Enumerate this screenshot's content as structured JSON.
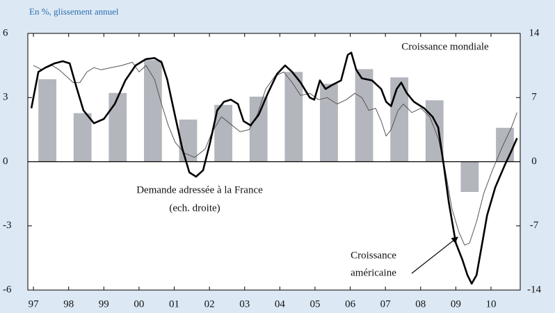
{
  "chart_data": {
    "type": "combo",
    "subtitle": "En %, glissement annuel",
    "xlim": [
      1996.84,
      2010.83
    ],
    "xticks": [
      {
        "value": 1997,
        "label": "97"
      },
      {
        "value": 1998,
        "label": "98"
      },
      {
        "value": 1999,
        "label": "99"
      },
      {
        "value": 2000,
        "label": "00"
      },
      {
        "value": 2001,
        "label": "01"
      },
      {
        "value": 2002,
        "label": "02"
      },
      {
        "value": 2003,
        "label": "03"
      },
      {
        "value": 2004,
        "label": "04"
      },
      {
        "value": 2005,
        "label": "05"
      },
      {
        "value": 2006,
        "label": "06"
      },
      {
        "value": 2007,
        "label": "07"
      },
      {
        "value": 2008,
        "label": "08"
      },
      {
        "value": 2009,
        "label": "09"
      },
      {
        "value": 2010,
        "label": "10"
      }
    ],
    "ylim": [
      -6,
      6
    ],
    "yticks": [
      -6,
      -3,
      0,
      3,
      6
    ],
    "y2lim": [
      -14,
      14
    ],
    "y2ticks": [
      -14,
      -7,
      0,
      7,
      14
    ],
    "annotations": [
      "Croissance mondiale",
      "Demande adressée à la France",
      "(ech. droite)",
      "Croissance",
      "américaine"
    ],
    "series": [
      {
        "type": "bar",
        "axis": "y2",
        "color": "#b4b6bd",
        "x": [
          1997,
          1998,
          1999,
          2000,
          2001,
          2002,
          2003,
          2004,
          2005,
          2006,
          2007,
          2008,
          2009,
          2010
        ],
        "values": [
          9.0,
          5.3,
          7.5,
          11.1,
          4.6,
          6.2,
          7.1,
          9.8,
          8.5,
          10.1,
          9.2,
          6.7,
          -3.3,
          3.7
        ]
      },
      {
        "type": "line",
        "color": "#555555",
        "width": 1,
        "x": [
          1997.0,
          1997.24,
          1997.53,
          1997.73,
          1997.93,
          1998.13,
          1998.32,
          1998.52,
          1998.72,
          1998.92,
          1999.21,
          1999.51,
          1999.81,
          2000.0,
          2000.2,
          2000.44,
          2000.64,
          2000.83,
          2001.03,
          2001.29,
          2001.58,
          2001.88,
          2002.08,
          2002.34,
          2002.57,
          2002.87,
          2003.13,
          2003.36,
          2003.6,
          2003.86,
          2004.11,
          2004.35,
          2004.59,
          2004.85,
          2005.1,
          2005.34,
          2005.63,
          2005.89,
          2006.13,
          2006.33,
          2006.53,
          2006.72,
          2006.88,
          2007.02,
          2007.16,
          2007.36,
          2007.51,
          2007.75,
          2008.01,
          2008.26,
          2008.5,
          2008.7,
          2008.89,
          2009.09,
          2009.25,
          2009.39,
          2009.59,
          2009.79,
          2010.04,
          2010.32,
          2010.58,
          2010.74
        ],
        "values": [
          4.5,
          4.3,
          4.5,
          4.3,
          4.0,
          3.7,
          3.7,
          4.2,
          4.4,
          4.3,
          4.4,
          4.5,
          4.65,
          4.2,
          4.5,
          3.85,
          2.7,
          1.7,
          0.9,
          0.4,
          0.2,
          0.6,
          1.4,
          2.1,
          1.8,
          1.4,
          1.5,
          2.2,
          3.4,
          4.0,
          4.2,
          3.7,
          3.1,
          3.2,
          2.9,
          3.0,
          2.7,
          2.9,
          3.2,
          3.0,
          2.4,
          2.5,
          1.9,
          1.2,
          1.5,
          2.4,
          2.7,
          2.3,
          2.5,
          2.1,
          1.1,
          -0.4,
          -2.2,
          -3.3,
          -3.9,
          -3.8,
          -2.8,
          -1.5,
          -0.4,
          0.7,
          1.6,
          2.3
        ]
      },
      {
        "type": "line",
        "color": "#000000",
        "width": 2.6,
        "x": [
          1996.94,
          1997.14,
          1997.34,
          1997.6,
          1997.83,
          1998.03,
          1998.22,
          1998.42,
          1998.72,
          1999.0,
          1999.31,
          1999.61,
          1999.9,
          2000.2,
          2000.44,
          2000.64,
          2000.8,
          2000.99,
          2001.23,
          2001.43,
          2001.62,
          2001.82,
          2002.02,
          2002.22,
          2002.41,
          2002.61,
          2002.81,
          2002.97,
          2003.17,
          2003.4,
          2003.66,
          2003.92,
          2004.15,
          2004.35,
          2004.59,
          2004.85,
          2004.98,
          2005.14,
          2005.3,
          2005.5,
          2005.74,
          2005.93,
          2006.03,
          2006.17,
          2006.33,
          2006.62,
          2006.88,
          2007.02,
          2007.16,
          2007.32,
          2007.45,
          2007.61,
          2007.81,
          2008.1,
          2008.34,
          2008.5,
          2008.66,
          2008.8,
          2009.0,
          2009.19,
          2009.33,
          2009.45,
          2009.59,
          2009.73,
          2009.89,
          2010.12,
          2010.38,
          2010.58,
          2010.74
        ],
        "values": [
          2.5,
          4.2,
          4.4,
          4.6,
          4.7,
          4.6,
          3.5,
          2.4,
          1.8,
          2.0,
          2.7,
          3.8,
          4.5,
          4.8,
          4.85,
          4.65,
          3.85,
          2.4,
          0.6,
          -0.5,
          -0.7,
          -0.4,
          0.9,
          2.4,
          2.8,
          2.9,
          2.7,
          1.9,
          1.7,
          2.2,
          3.2,
          4.1,
          4.5,
          4.2,
          3.7,
          3.0,
          2.9,
          3.8,
          3.4,
          3.6,
          3.8,
          5.0,
          5.1,
          4.3,
          3.9,
          3.8,
          3.4,
          2.8,
          2.6,
          3.4,
          3.7,
          3.2,
          2.8,
          2.5,
          2.1,
          1.6,
          -0.2,
          -1.9,
          -3.8,
          -4.6,
          -5.3,
          -5.7,
          -5.3,
          -4.0,
          -2.5,
          -1.2,
          -0.2,
          0.5,
          1.1
        ]
      }
    ]
  }
}
